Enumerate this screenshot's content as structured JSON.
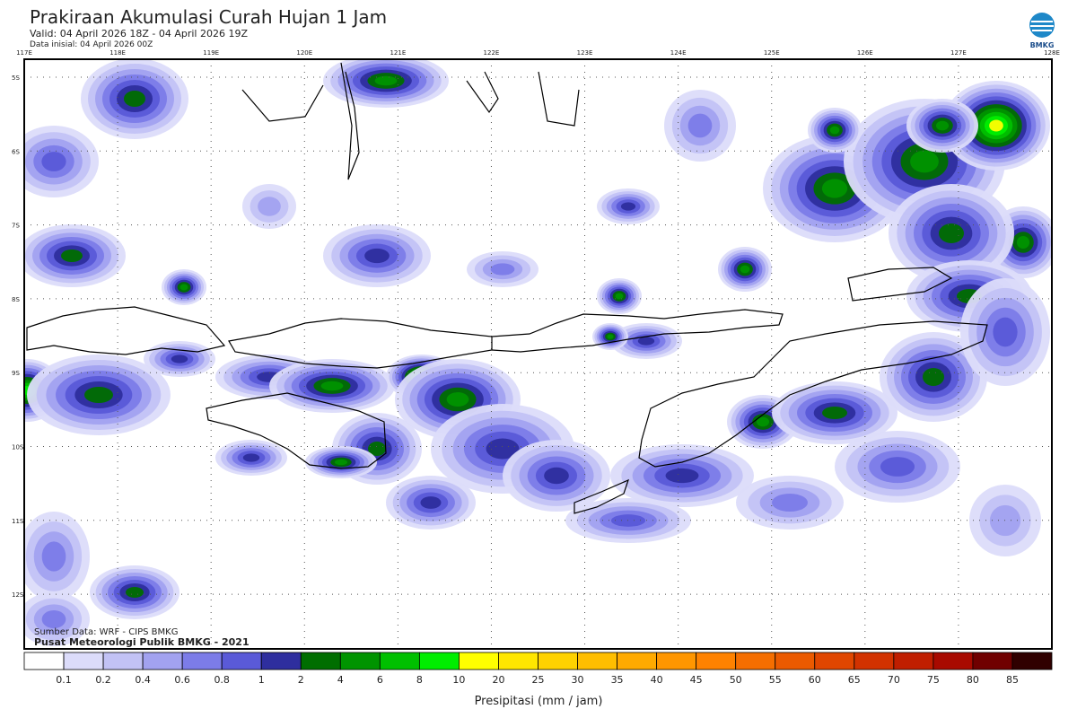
{
  "header": {
    "title": "Prakiraan Akumulasi Curah Hujan 1 Jam",
    "valid": "Valid: 04 April 2026 18Z - 04 April 2026 19Z",
    "initial": "Data inisial: 04 April 2026 00Z",
    "logo": "BMKG"
  },
  "map": {
    "lon_labels": [
      "117E",
      "118E",
      "119E",
      "120E",
      "121E",
      "122E",
      "123E",
      "124E",
      "125E",
      "126E",
      "127E",
      "128E"
    ],
    "lat_labels": [
      "5S",
      "6S",
      "7S",
      "8S",
      "9S",
      "10S",
      "11S",
      "12S"
    ],
    "source": [
      "Sumber Data: WRF - CIPS BMKG",
      "Pusat Meteorologi Publik BMKG - 2021"
    ]
  },
  "legend": {
    "colors": [
      "#ffffff",
      "#dcdcfa",
      "#c2c2f5",
      "#a2a2f0",
      "#7c7ce8",
      "#5a5ad8",
      "#2e2e9e",
      "#006e00",
      "#009400",
      "#00c000",
      "#00ee00",
      "#ffff00",
      "#ffe600",
      "#ffd200",
      "#ffbe00",
      "#ffaa00",
      "#ff9600",
      "#ff8200",
      "#f56e00",
      "#eb5a00",
      "#e04600",
      "#d23200",
      "#c01e00",
      "#a80a00",
      "#700000",
      "#300000"
    ],
    "levels": [
      0.1,
      0.2,
      0.4,
      0.6,
      0.8,
      1,
      2,
      4,
      6,
      8,
      10,
      20,
      25,
      30,
      35,
      40,
      45,
      50,
      55,
      60,
      65,
      70,
      75,
      80,
      85
    ],
    "label": "Presipitasi (mm / jam)"
  }
}
